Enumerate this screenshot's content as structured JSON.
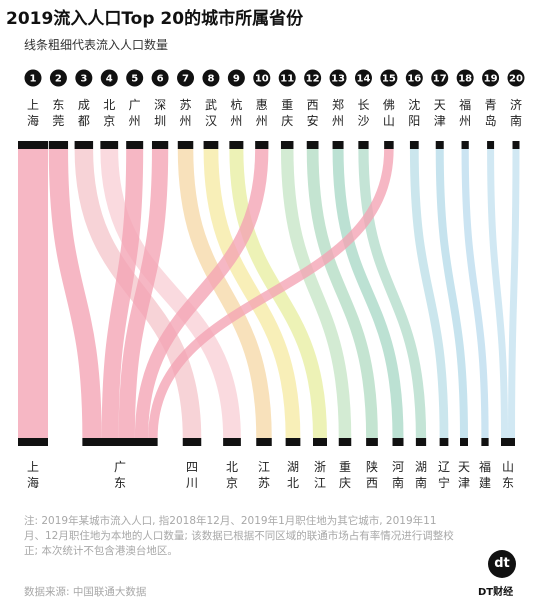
{
  "title": "2019流入人口Top 20的城市所属省份",
  "subtitle": "线条粗细代表流入人口数量",
  "note": "注: 2019年某城市流入人口, 指2018年12月、2019年1月职住地为其它城市, 2019年11月、12月职住地为本地的人口数量; 该数据已根据不同区域的联通市场占有率情况进行调整校正; 本次统计不包含港澳台地区。",
  "source": "数据来源: 中国联通大数据",
  "brand": {
    "logo": "dt",
    "name": "DT财经"
  },
  "colors": {
    "广东": "#f4a3b4",
    "四川": "#f5c6cc",
    "北京": "#f8cfd6",
    "江苏": "#f6d9a8",
    "湖北": "#f6eba4",
    "浙江": "#e8eea2",
    "重庆": "#c6e6c6",
    "陕西": "#b4dcc4",
    "河南": "#a9d9c6",
    "湖南": "#b3dccb",
    "辽宁": "#bcdfe8",
    "天津": "#b6dbe9",
    "福建": "#bcdcee",
    "山东": "#c4e2f0"
  },
  "chart_data": {
    "type": "sankey",
    "title": "2019流入人口Top 20的城市所属省份",
    "subtitle": "线条粗细代表流入人口数量",
    "cities": [
      {
        "rank": 1,
        "name": "上海",
        "province": "上海"
      },
      {
        "rank": 2,
        "name": "东莞",
        "province": "广东"
      },
      {
        "rank": 3,
        "name": "成都",
        "province": "四川"
      },
      {
        "rank": 4,
        "name": "北京",
        "province": "北京"
      },
      {
        "rank": 5,
        "name": "广州",
        "province": "广东"
      },
      {
        "rank": 6,
        "name": "深圳",
        "province": "广东"
      },
      {
        "rank": 7,
        "name": "苏州",
        "province": "江苏"
      },
      {
        "rank": 8,
        "name": "武汉",
        "province": "湖北"
      },
      {
        "rank": 9,
        "name": "杭州",
        "province": "浙江"
      },
      {
        "rank": 10,
        "name": "惠州",
        "province": "广东"
      },
      {
        "rank": 11,
        "name": "重庆",
        "province": "重庆"
      },
      {
        "rank": 12,
        "name": "西安",
        "province": "陕西"
      },
      {
        "rank": 13,
        "name": "郑州",
        "province": "河南"
      },
      {
        "rank": 14,
        "name": "长沙",
        "province": "湖南"
      },
      {
        "rank": 15,
        "name": "佛山",
        "province": "广东"
      },
      {
        "rank": 16,
        "name": "沈阳",
        "province": "辽宁"
      },
      {
        "rank": 17,
        "name": "天津",
        "province": "天津"
      },
      {
        "rank": 18,
        "name": "福州",
        "province": "福建"
      },
      {
        "rank": 19,
        "name": "青岛",
        "province": "山东"
      },
      {
        "rank": 20,
        "name": "济南",
        "province": "山东"
      }
    ],
    "provinces": [
      "上海",
      "广东",
      "四川",
      "北京",
      "江苏",
      "湖北",
      "浙江",
      "重庆",
      "陕西",
      "河南",
      "湖南",
      "辽宁",
      "天津",
      "福建",
      "山东"
    ]
  }
}
